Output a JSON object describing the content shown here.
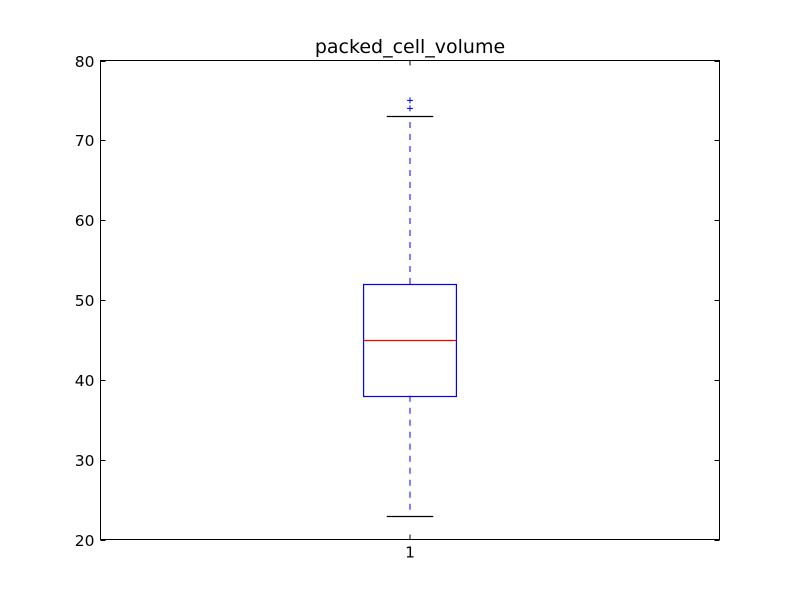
{
  "chart_data": {
    "type": "box",
    "title": "packed_cell_volume",
    "xlabel": "",
    "ylabel": "",
    "ylim": [
      20,
      80
    ],
    "y_ticks": [
      20,
      30,
      40,
      50,
      60,
      70,
      80
    ],
    "categories": [
      "1"
    ],
    "boxes": [
      {
        "category": "1",
        "whisker_low": 23,
        "q1": 38,
        "median": 45,
        "q3": 52,
        "whisker_high": 73,
        "outliers": [
          74,
          75
        ]
      }
    ],
    "grid": false,
    "colors": {
      "box": "#0000ff",
      "whisker": "#0000ff",
      "median": "#ff0000",
      "cap": "#000000",
      "outlier": "#0000ff",
      "axes": "#000000"
    }
  }
}
